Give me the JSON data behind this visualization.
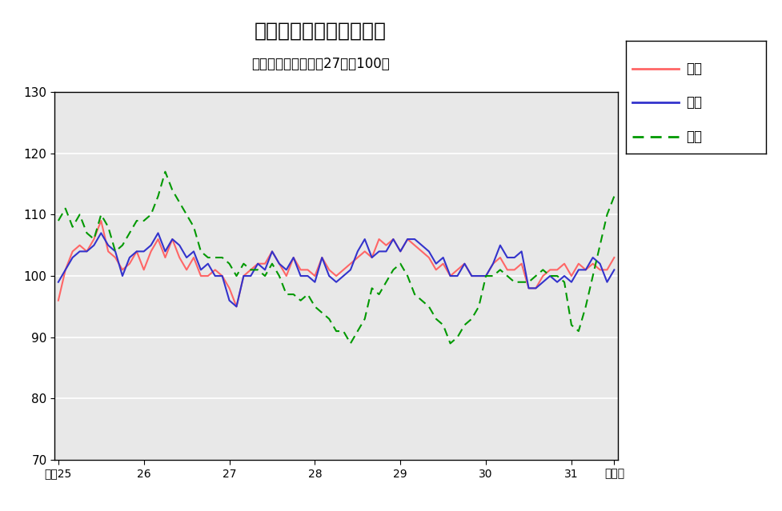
{
  "title": "鳥取県鉱工業指数の推移",
  "subtitle": "（季節調整済、平成27年＝100）",
  "legend_labels": [
    "生産",
    "出荷",
    "在庫"
  ],
  "x_labels": [
    "平成25",
    "26",
    "27",
    "28",
    "29",
    "30",
    "31",
    "令和元"
  ],
  "ylim": [
    70,
    130
  ],
  "yticks": [
    70,
    80,
    90,
    100,
    110,
    120,
    130
  ],
  "production": [
    96,
    101,
    104,
    105,
    104,
    106,
    109,
    104,
    103,
    101,
    102,
    104,
    101,
    104,
    106,
    103,
    106,
    103,
    101,
    103,
    100,
    100,
    101,
    100,
    98,
    95,
    100,
    101,
    102,
    102,
    104,
    102,
    100,
    103,
    101,
    101,
    100,
    103,
    101,
    100,
    101,
    102,
    103,
    104,
    103,
    106,
    105,
    106,
    104,
    106,
    105,
    104,
    103,
    101,
    102,
    100,
    101,
    102,
    100,
    100,
    100,
    102,
    103,
    101,
    101,
    102,
    98,
    98,
    100,
    101,
    101,
    102,
    100,
    102,
    101,
    102,
    101,
    101,
    103
  ],
  "shipment": [
    99,
    101,
    103,
    104,
    104,
    105,
    107,
    105,
    104,
    100,
    103,
    104,
    104,
    105,
    107,
    104,
    106,
    105,
    103,
    104,
    101,
    102,
    100,
    100,
    96,
    95,
    100,
    100,
    102,
    101,
    104,
    102,
    101,
    103,
    100,
    100,
    99,
    103,
    100,
    99,
    100,
    101,
    104,
    106,
    103,
    104,
    104,
    106,
    104,
    106,
    106,
    105,
    104,
    102,
    103,
    100,
    100,
    102,
    100,
    100,
    100,
    102,
    105,
    103,
    103,
    104,
    98,
    98,
    99,
    100,
    99,
    100,
    99,
    101,
    101,
    103,
    102,
    99,
    101
  ],
  "inventory": [
    109,
    111,
    108,
    110,
    107,
    106,
    110,
    108,
    104,
    105,
    107,
    109,
    109,
    110,
    113,
    117,
    114,
    112,
    110,
    108,
    104,
    103,
    103,
    103,
    102,
    100,
    102,
    101,
    101,
    100,
    102,
    100,
    97,
    97,
    96,
    97,
    95,
    94,
    93,
    91,
    91,
    89,
    91,
    93,
    98,
    97,
    99,
    101,
    102,
    100,
    97,
    96,
    95,
    93,
    92,
    89,
    90,
    92,
    93,
    95,
    100,
    100,
    101,
    100,
    99,
    99,
    99,
    100,
    101,
    100,
    100,
    99,
    92,
    91,
    95,
    100,
    105,
    110,
    113
  ],
  "production_color": "#FF6666",
  "shipment_color": "#3333CC",
  "inventory_color": "#009900",
  "bg_color": "#E8E8E8",
  "n_points": 79,
  "x_tick_positions": [
    0,
    12,
    24,
    36,
    48,
    60,
    72,
    78
  ]
}
